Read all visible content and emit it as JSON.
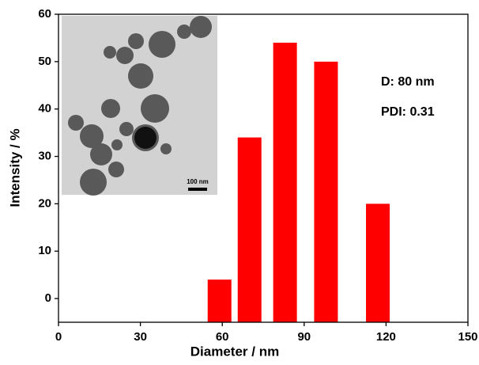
{
  "chart_data": {
    "type": "bar",
    "x_label": "Diameter / nm",
    "y_label": "Intensity / %",
    "x": [
      59,
      70,
      83,
      98,
      117
    ],
    "values": [
      4,
      34,
      54,
      50,
      20
    ],
    "color": "#ff0000",
    "xlim": [
      0,
      150
    ],
    "xticks": [
      0,
      30,
      60,
      90,
      120,
      150
    ],
    "ylim": [
      -5,
      60
    ],
    "yticks": [
      0,
      10,
      20,
      30,
      40,
      50,
      60
    ],
    "annotations": [
      "D: 80 nm",
      "PDI: 0.31"
    ],
    "inset_scale_bar": "100 nm"
  }
}
